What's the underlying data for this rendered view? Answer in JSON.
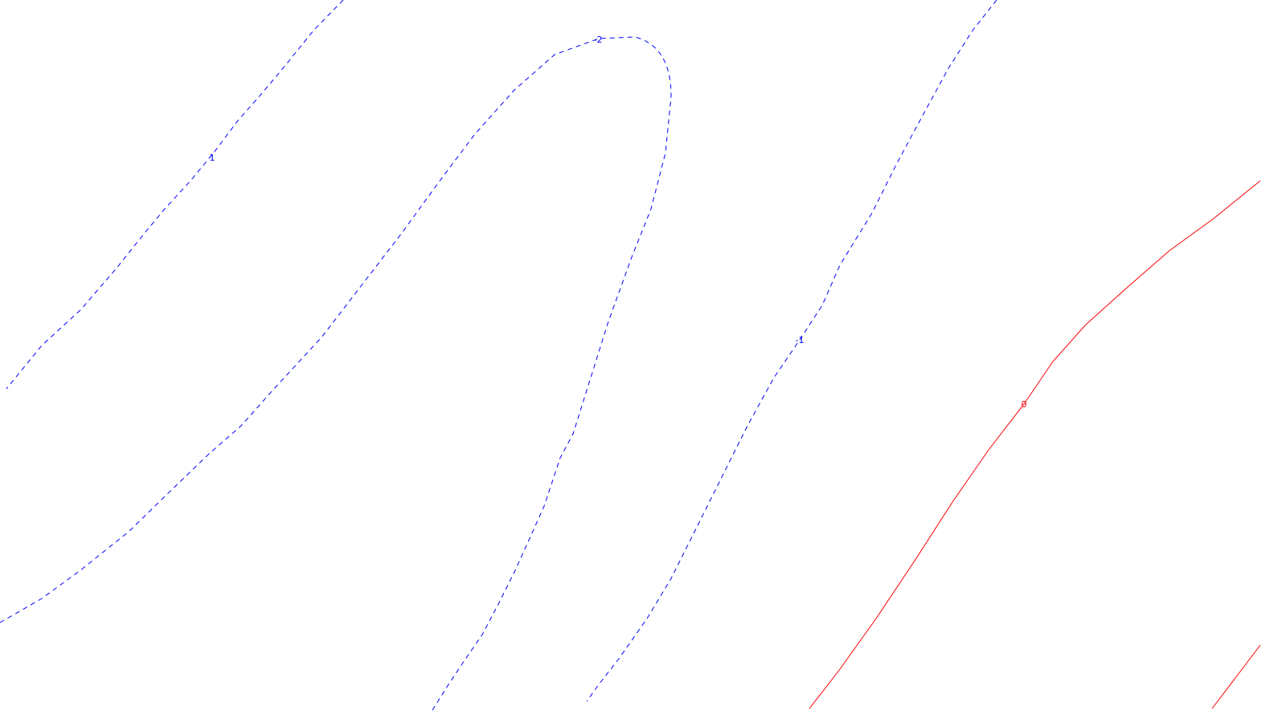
{
  "chart_data": {
    "type": "contour",
    "title": "",
    "xlabel": "",
    "ylabel": "",
    "grid": false,
    "legend": "none",
    "contours": [
      {
        "level": "1",
        "color": "#0000ff",
        "dashed": true,
        "label": "1"
      },
      {
        "level": "-2",
        "color": "#0000ff",
        "dashed": true,
        "label": "-2"
      },
      {
        "level": "-1",
        "color": "#0000ff",
        "dashed": true,
        "label": "-1"
      },
      {
        "level": "0",
        "color": "#ff0000",
        "dashed": false,
        "label": "0"
      },
      {
        "level": "0",
        "color": "#ff0000",
        "dashed": false,
        "label": ""
      }
    ]
  }
}
